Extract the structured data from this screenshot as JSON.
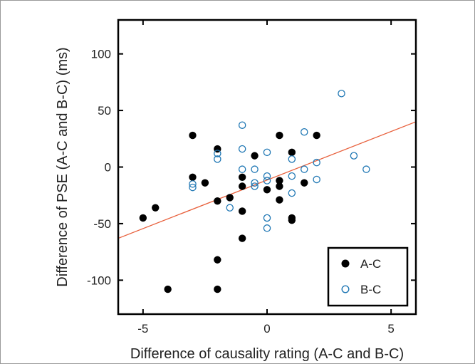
{
  "chart_data": {
    "type": "scatter",
    "xlabel": "Difference of causality rating (A-C and B-C)",
    "ylabel": "Difference of PSE (A-C and B-C) (ms)",
    "xlim": [
      -6,
      6
    ],
    "ylim": [
      -130,
      130
    ],
    "xticks": [
      -5,
      0,
      5
    ],
    "yticks": [
      -100,
      -50,
      0,
      50,
      100
    ],
    "xtick_labels": [
      "-5",
      "0",
      "5"
    ],
    "ytick_labels": [
      "-100",
      "-50",
      "0",
      "50",
      "100"
    ],
    "grid": false,
    "legend_position": "bottom-right",
    "series": [
      {
        "name": "A-C",
        "marker": "filled-circle",
        "color": "#000000",
        "points": [
          [
            -5,
            -45
          ],
          [
            -4.5,
            -36
          ],
          [
            -4,
            -108
          ],
          [
            -3,
            28
          ],
          [
            -3,
            -9
          ],
          [
            -2.5,
            -14
          ],
          [
            -2,
            16
          ],
          [
            -2,
            -30
          ],
          [
            -2,
            -82
          ],
          [
            -2,
            -108
          ],
          [
            -1.5,
            -27
          ],
          [
            -1,
            -9
          ],
          [
            -1,
            -17
          ],
          [
            -1,
            -39
          ],
          [
            -1,
            -63
          ],
          [
            -0.5,
            10
          ],
          [
            0,
            -20
          ],
          [
            0.5,
            28
          ],
          [
            0.5,
            -12
          ],
          [
            0.5,
            -17
          ],
          [
            0.5,
            -29
          ],
          [
            1,
            13
          ],
          [
            1,
            -45
          ],
          [
            1,
            -47
          ],
          [
            1.5,
            -14
          ],
          [
            2,
            28
          ]
        ]
      },
      {
        "name": "B-C",
        "marker": "open-circle",
        "color": "#1f77b4",
        "points": [
          [
            -3,
            -15
          ],
          [
            -3,
            -18
          ],
          [
            -2,
            12
          ],
          [
            -2,
            7
          ],
          [
            -1.5,
            -36
          ],
          [
            -1,
            37
          ],
          [
            -1,
            16
          ],
          [
            -1,
            -2
          ],
          [
            -0.5,
            -2
          ],
          [
            -0.5,
            -14
          ],
          [
            -0.5,
            -17
          ],
          [
            0,
            13
          ],
          [
            0,
            -8
          ],
          [
            0,
            -12
          ],
          [
            0,
            -45
          ],
          [
            0,
            -54
          ],
          [
            1,
            7
          ],
          [
            1,
            -8
          ],
          [
            1,
            -23
          ],
          [
            1.5,
            31
          ],
          [
            1.5,
            -2
          ],
          [
            2,
            4
          ],
          [
            2,
            -11
          ],
          [
            3,
            65
          ],
          [
            3.5,
            10
          ],
          [
            4,
            -2
          ]
        ]
      }
    ],
    "fit_line": {
      "color": "#e8603c",
      "x": [
        -6,
        6
      ],
      "y": [
        -63,
        40
      ]
    },
    "colors": {
      "axes": "#000000",
      "a_c": "#000000",
      "b_c": "#1f77b4",
      "fit": "#e8603c"
    }
  }
}
